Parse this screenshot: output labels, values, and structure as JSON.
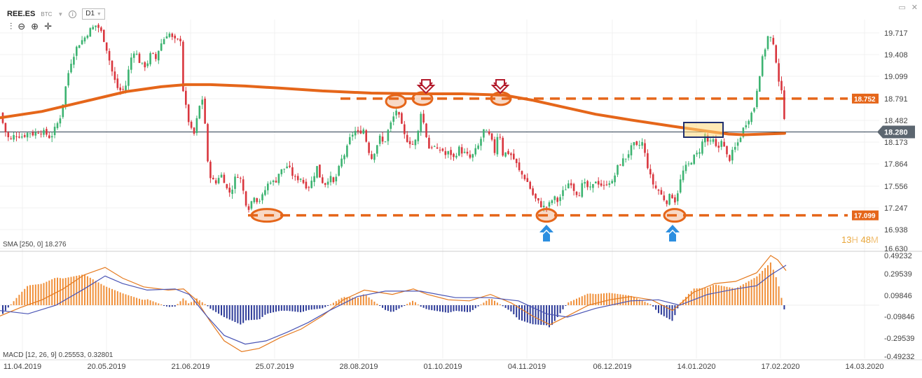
{
  "header": {
    "symbol": "REE.ES",
    "exchange": "BTC",
    "timeframe": "D1",
    "dropdown_icon": "chevron-down-icon",
    "info_icon": "info-icon",
    "tools": [
      "candles-icon",
      "zoom-out-icon",
      "zoom-in-icon",
      "crosshair-icon"
    ]
  },
  "window_icons": [
    "maximize-icon",
    "close-icon"
  ],
  "sma_label": "SMA [250, 0] 18.276",
  "macd_label": "MACD [12, 26, 9] 0.25553, 0.32801",
  "timer": {
    "hours": "13",
    "h_unit": "H",
    "minutes": "48",
    "m_unit": "M"
  },
  "chart_data": [
    {
      "type": "candlestick",
      "y_ticks": [
        "19.717",
        "19.408",
        "19.099",
        "18.791",
        "18.482",
        "18.173",
        "17.864",
        "17.556",
        "17.247",
        "16.938",
        "16.630"
      ],
      "x_ticks": [
        "11.04.2019",
        "20.05.2019",
        "21.06.2019",
        "25.07.2019",
        "28.08.2019",
        "01.10.2019",
        "04.11.2019",
        "06.12.2019",
        "14.01.2020",
        "17.02.2020",
        "14.03.2020"
      ],
      "ylim": [
        16.63,
        19.87
      ],
      "current_price": 18.28,
      "current_price_label": "18.280",
      "resistance": {
        "value": 18.752,
        "label": "18.752"
      },
      "support": {
        "value": 17.099,
        "label": "17.099"
      },
      "close_path": [
        [
          0,
          18.55
        ],
        [
          7,
          18.3
        ],
        [
          14,
          18.15
        ],
        [
          22,
          18.25
        ],
        [
          32,
          18.22
        ],
        [
          42,
          18.28
        ],
        [
          48,
          18.25
        ],
        [
          56,
          18.3
        ],
        [
          66,
          18.25
        ],
        [
          72,
          18.2
        ],
        [
          80,
          18.35
        ],
        [
          86,
          18.5
        ],
        [
          90,
          18.7
        ],
        [
          96,
          19.05
        ],
        [
          102,
          19.3
        ],
        [
          108,
          19.45
        ],
        [
          114,
          19.55
        ],
        [
          120,
          19.6
        ],
        [
          126,
          19.7
        ],
        [
          132,
          19.75
        ],
        [
          138,
          19.8
        ],
        [
          144,
          19.7
        ],
        [
          150,
          19.55
        ],
        [
          156,
          19.3
        ],
        [
          162,
          19.05
        ],
        [
          168,
          18.9
        ],
        [
          174,
          18.85
        ],
        [
          180,
          18.95
        ],
        [
          186,
          19.3
        ],
        [
          192,
          19.45
        ],
        [
          198,
          19.3
        ],
        [
          204,
          19.2
        ],
        [
          210,
          19.25
        ],
        [
          216,
          19.4
        ],
        [
          222,
          19.3
        ],
        [
          228,
          19.5
        ],
        [
          234,
          19.6
        ],
        [
          240,
          19.7
        ],
        [
          246,
          19.6
        ],
        [
          252,
          19.55
        ],
        [
          258,
          19.6
        ],
        [
          262,
          18.75
        ],
        [
          266,
          18.6
        ],
        [
          270,
          18.4
        ],
        [
          276,
          18.2
        ],
        [
          282,
          18.5
        ],
        [
          288,
          18.8
        ],
        [
          292,
          18.5
        ],
        [
          296,
          17.85
        ],
        [
          302,
          17.6
        ],
        [
          308,
          17.55
        ],
        [
          314,
          17.7
        ],
        [
          320,
          17.6
        ],
        [
          326,
          17.4
        ],
        [
          332,
          17.5
        ],
        [
          338,
          17.7
        ],
        [
          344,
          17.6
        ],
        [
          350,
          17.3
        ],
        [
          356,
          17.2
        ],
        [
          362,
          17.4
        ],
        [
          368,
          17.3
        ],
        [
          374,
          17.35
        ],
        [
          380,
          17.5
        ],
        [
          386,
          17.6
        ],
        [
          392,
          17.55
        ],
        [
          398,
          17.7
        ],
        [
          404,
          17.75
        ],
        [
          410,
          17.8
        ],
        [
          416,
          17.7
        ],
        [
          422,
          17.6
        ],
        [
          428,
          17.65
        ],
        [
          434,
          17.55
        ],
        [
          440,
          17.5
        ],
        [
          446,
          17.6
        ],
        [
          452,
          17.8
        ],
        [
          458,
          17.6
        ],
        [
          464,
          17.55
        ],
        [
          470,
          17.65
        ],
        [
          476,
          17.55
        ],
        [
          482,
          17.7
        ],
        [
          488,
          17.9
        ],
        [
          494,
          18.0
        ],
        [
          500,
          18.2
        ],
        [
          506,
          18.3
        ],
        [
          512,
          18.25
        ],
        [
          518,
          18.35
        ],
        [
          524,
          18.1
        ],
        [
          530,
          17.9
        ],
        [
          536,
          18.05
        ],
        [
          542,
          18.2
        ],
        [
          548,
          18.1
        ],
        [
          554,
          18.3
        ],
        [
          560,
          18.45
        ],
        [
          566,
          18.6
        ],
        [
          572,
          18.4
        ],
        [
          578,
          18.2
        ],
        [
          584,
          18.15
        ],
        [
          590,
          18.1
        ],
        [
          596,
          18.2
        ],
        [
          600,
          18.6
        ],
        [
          606,
          18.35
        ],
        [
          612,
          18.05
        ],
        [
          618,
          18.1
        ],
        [
          624,
          18.0
        ],
        [
          630,
          18.05
        ],
        [
          636,
          17.95
        ],
        [
          642,
          18.0
        ],
        [
          648,
          17.9
        ],
        [
          654,
          18.05
        ],
        [
          660,
          18.0
        ],
        [
          666,
          17.95
        ],
        [
          672,
          17.9
        ],
        [
          678,
          18.0
        ],
        [
          684,
          18.1
        ],
        [
          690,
          18.3
        ],
        [
          696,
          18.25
        ],
        [
          700,
          18.2
        ],
        [
          706,
          18.0
        ],
        [
          712,
          18.35
        ],
        [
          718,
          17.95
        ],
        [
          724,
          18.0
        ],
        [
          730,
          17.95
        ],
        [
          736,
          17.85
        ],
        [
          742,
          17.7
        ],
        [
          748,
          17.65
        ],
        [
          754,
          17.55
        ],
        [
          760,
          17.4
        ],
        [
          766,
          17.3
        ],
        [
          772,
          17.25
        ],
        [
          778,
          17.2
        ],
        [
          784,
          17.25
        ],
        [
          790,
          17.35
        ],
        [
          796,
          17.3
        ],
        [
          802,
          17.4
        ],
        [
          808,
          17.5
        ],
        [
          814,
          17.6
        ],
        [
          820,
          17.45
        ],
        [
          826,
          17.4
        ],
        [
          832,
          17.55
        ],
        [
          838,
          17.5
        ],
        [
          844,
          17.45
        ],
        [
          850,
          17.6
        ],
        [
          856,
          17.55
        ],
        [
          862,
          17.5
        ],
        [
          868,
          17.6
        ],
        [
          874,
          17.55
        ],
        [
          880,
          17.75
        ],
        [
          886,
          17.85
        ],
        [
          892,
          17.9
        ],
        [
          898,
          18.0
        ],
        [
          904,
          18.1
        ],
        [
          910,
          18.05
        ],
        [
          916,
          18.15
        ],
        [
          922,
          17.9
        ],
        [
          928,
          17.65
        ],
        [
          934,
          17.5
        ],
        [
          940,
          17.45
        ],
        [
          946,
          17.35
        ],
        [
          952,
          17.3
        ],
        [
          958,
          17.4
        ],
        [
          964,
          17.3
        ],
        [
          970,
          17.55
        ],
        [
          976,
          17.75
        ],
        [
          982,
          17.8
        ],
        [
          988,
          17.9
        ],
        [
          994,
          17.95
        ],
        [
          1000,
          18.05
        ],
        [
          1006,
          18.25
        ],
        [
          1012,
          18.1
        ],
        [
          1018,
          18.15
        ],
        [
          1024,
          18.0
        ],
        [
          1030,
          18.2
        ],
        [
          1036,
          17.95
        ],
        [
          1042,
          17.9
        ],
        [
          1046,
          18.0
        ],
        [
          1052,
          18.1
        ],
        [
          1058,
          18.25
        ],
        [
          1064,
          18.4
        ],
        [
          1070,
          18.5
        ],
        [
          1076,
          18.6
        ],
        [
          1082,
          19.0
        ],
        [
          1088,
          19.3
        ],
        [
          1094,
          19.55
        ],
        [
          1098,
          19.7
        ],
        [
          1102,
          19.5
        ],
        [
          1106,
          19.45
        ],
        [
          1110,
          19.1
        ],
        [
          1116,
          18.8
        ],
        [
          1122,
          18.28
        ]
      ],
      "sma_path": [
        [
          0,
          18.48
        ],
        [
          60,
          18.57
        ],
        [
          120,
          18.71
        ],
        [
          180,
          18.85
        ],
        [
          230,
          18.92
        ],
        [
          265,
          18.95
        ],
        [
          300,
          18.95
        ],
        [
          350,
          18.93
        ],
        [
          400,
          18.9
        ],
        [
          460,
          18.86
        ],
        [
          530,
          18.83
        ],
        [
          600,
          18.82
        ],
        [
          660,
          18.82
        ],
        [
          720,
          18.8
        ],
        [
          760,
          18.73
        ],
        [
          800,
          18.64
        ],
        [
          850,
          18.53
        ],
        [
          900,
          18.45
        ],
        [
          960,
          18.36
        ],
        [
          1010,
          18.29
        ],
        [
          1040,
          18.25
        ],
        [
          1062,
          18.24
        ],
        [
          1120,
          18.26
        ]
      ],
      "annotations": {
        "top_arrows": [
          "arrow-down-red",
          "arrow-down-red"
        ],
        "bottom_arrows": [
          "arrow-up-blue",
          "arrow-up-blue"
        ],
        "box_color": "#1f2f6e"
      },
      "colors": {
        "up": "#3cb371",
        "down": "#d9363e",
        "sma": "#e5661a",
        "levels": "#e5661a",
        "price_line": "#2d3e50"
      }
    },
    {
      "type": "macd",
      "y_ticks": [
        "0.49232",
        "0.29539",
        "0.09846",
        "-0.09846",
        "-0.29539",
        "-0.49232"
      ],
      "ylim": [
        -0.49232,
        0.49232
      ],
      "macd_path": [
        [
          0,
          -0.1
        ],
        [
          30,
          -0.02
        ],
        [
          60,
          0.05
        ],
        [
          90,
          0.15
        ],
        [
          120,
          0.28
        ],
        [
          150,
          0.35
        ],
        [
          175,
          0.25
        ],
        [
          205,
          0.17
        ],
        [
          240,
          0.14
        ],
        [
          262,
          0.15
        ],
        [
          280,
          0.05
        ],
        [
          300,
          -0.15
        ],
        [
          320,
          -0.33
        ],
        [
          345,
          -0.43
        ],
        [
          370,
          -0.4
        ],
        [
          400,
          -0.3
        ],
        [
          430,
          -0.22
        ],
        [
          460,
          -0.1
        ],
        [
          490,
          0.05
        ],
        [
          520,
          0.14
        ],
        [
          560,
          0.1
        ],
        [
          590,
          0.15
        ],
        [
          610,
          0.1
        ],
        [
          640,
          0.05
        ],
        [
          670,
          0.04
        ],
        [
          700,
          0.1
        ],
        [
          730,
          0.02
        ],
        [
          760,
          -0.1
        ],
        [
          785,
          -0.18
        ],
        [
          810,
          -0.1
        ],
        [
          840,
          0.0
        ],
        [
          870,
          0.05
        ],
        [
          900,
          0.08
        ],
        [
          930,
          0.05
        ],
        [
          960,
          -0.05
        ],
        [
          990,
          0.12
        ],
        [
          1020,
          0.2
        ],
        [
          1050,
          0.22
        ],
        [
          1080,
          0.3
        ],
        [
          1100,
          0.46
        ],
        [
          1110,
          0.42
        ],
        [
          1122,
          0.32
        ]
      ],
      "signal_path": [
        [
          0,
          -0.05
        ],
        [
          40,
          -0.08
        ],
        [
          80,
          0.0
        ],
        [
          120,
          0.15
        ],
        [
          150,
          0.27
        ],
        [
          175,
          0.2
        ],
        [
          210,
          0.14
        ],
        [
          250,
          0.15
        ],
        [
          270,
          0.1
        ],
        [
          295,
          -0.1
        ],
        [
          320,
          -0.28
        ],
        [
          350,
          -0.36
        ],
        [
          380,
          -0.33
        ],
        [
          410,
          -0.25
        ],
        [
          440,
          -0.16
        ],
        [
          470,
          -0.05
        ],
        [
          510,
          0.08
        ],
        [
          550,
          0.13
        ],
        [
          600,
          0.13
        ],
        [
          650,
          0.07
        ],
        [
          700,
          0.07
        ],
        [
          740,
          0.04
        ],
        [
          780,
          -0.08
        ],
        [
          810,
          -0.11
        ],
        [
          850,
          -0.03
        ],
        [
          900,
          0.04
        ],
        [
          940,
          0.05
        ],
        [
          970,
          0.0
        ],
        [
          1010,
          0.1
        ],
        [
          1050,
          0.15
        ],
        [
          1080,
          0.18
        ],
        [
          1100,
          0.28
        ],
        [
          1122,
          0.37
        ]
      ],
      "colors": {
        "macd": "#e57a1f",
        "signal": "#4a55b5",
        "hist_pos": "#f0903a",
        "hist_neg": "#2c3a98"
      }
    }
  ]
}
